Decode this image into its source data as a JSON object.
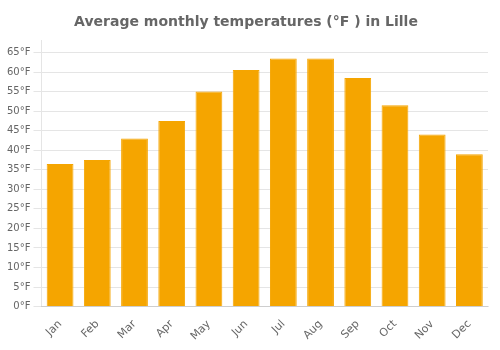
{
  "chart_data": {
    "type": "bar",
    "title": "Average monthly temperatures (°F ) in Lille",
    "categories": [
      "Jan",
      "Feb",
      "Mar",
      "Apr",
      "May",
      "Jun",
      "Jul",
      "Aug",
      "Sep",
      "Oct",
      "Nov",
      "Dec"
    ],
    "values": [
      36.5,
      37.5,
      43.0,
      47.5,
      55.0,
      60.5,
      63.5,
      63.5,
      58.5,
      51.5,
      44.0,
      39.0
    ],
    "color": "#F5A500",
    "ylim": [
      0,
      68
    ],
    "yticks": [
      {
        "value": 0,
        "label": "0°F"
      },
      {
        "value": 5,
        "label": "5°F"
      },
      {
        "value": 10,
        "label": "10°F"
      },
      {
        "value": 15,
        "label": "15°F"
      },
      {
        "value": 20,
        "label": "20°F"
      },
      {
        "value": 25,
        "label": "25°F"
      },
      {
        "value": 30,
        "label": "30°F"
      },
      {
        "value": 35,
        "label": "35°F"
      },
      {
        "value": 40,
        "label": "40°F"
      },
      {
        "value": 45,
        "label": "45°F"
      },
      {
        "value": 50,
        "label": "50°F"
      },
      {
        "value": 55,
        "label": "55°F"
      },
      {
        "value": 60,
        "label": "60°F"
      },
      {
        "value": 65,
        "label": "65°F"
      }
    ],
    "grid": true
  }
}
